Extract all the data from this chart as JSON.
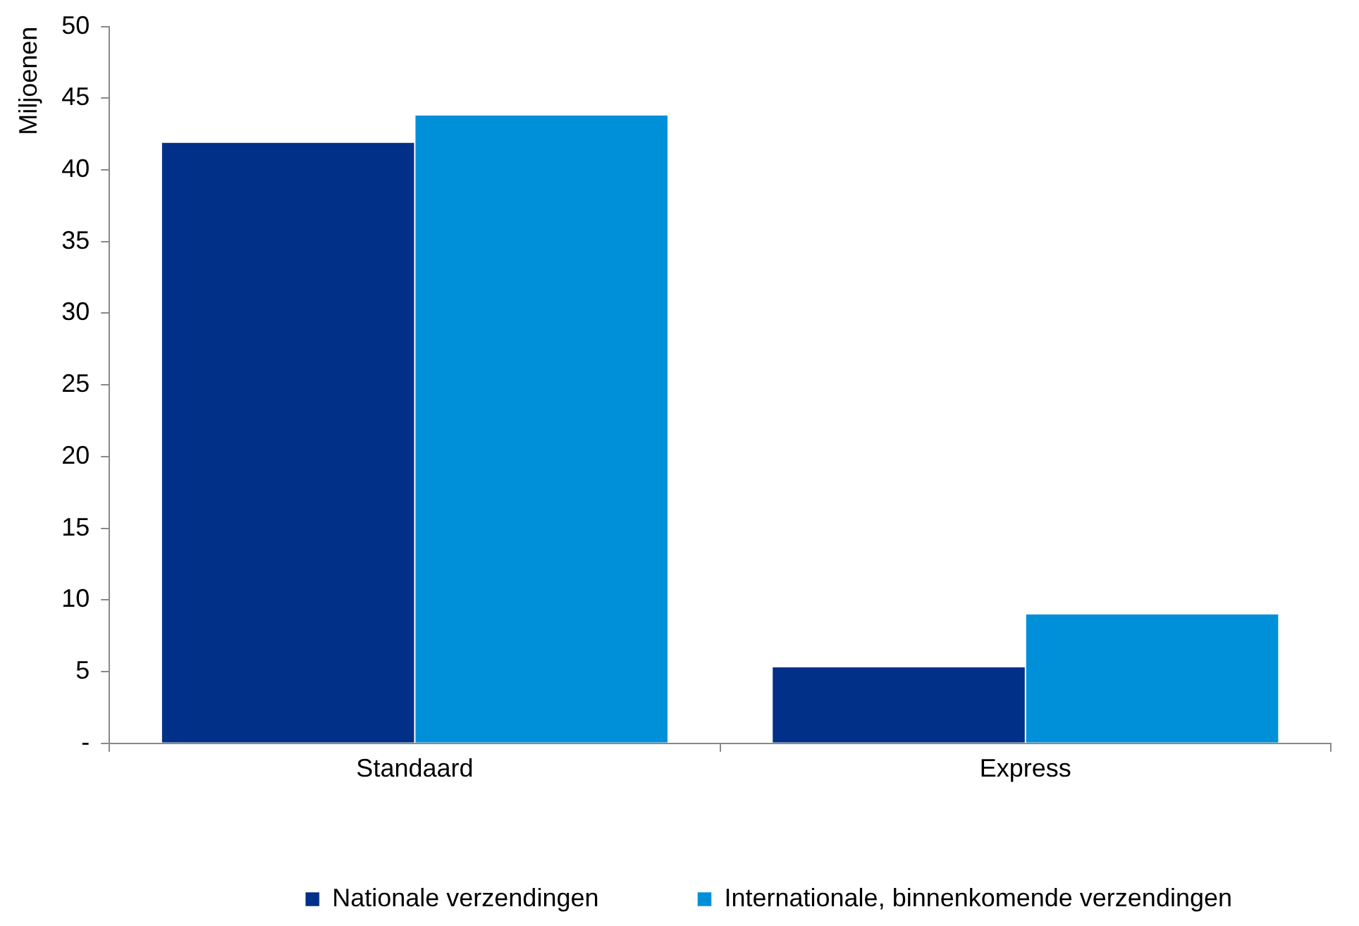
{
  "chart_data": {
    "type": "bar",
    "ylabel": "Miljoenen",
    "categories": [
      "Standaard",
      "Express"
    ],
    "series": [
      {
        "name": "Nationale verzendingen",
        "color": "#003087",
        "values": [
          41.9,
          5.3
        ]
      },
      {
        "name": "Internationale, binnenkomende verzendingen",
        "color": "#0090da",
        "values": [
          43.8,
          9.0
        ]
      }
    ],
    "ylim": [
      0,
      50
    ],
    "yticks": [
      {
        "value": 0,
        "label": "-"
      },
      5,
      10,
      15,
      20,
      25,
      30,
      35,
      40,
      45,
      50
    ],
    "grid": false,
    "legend": "bottom",
    "marker": "square"
  }
}
